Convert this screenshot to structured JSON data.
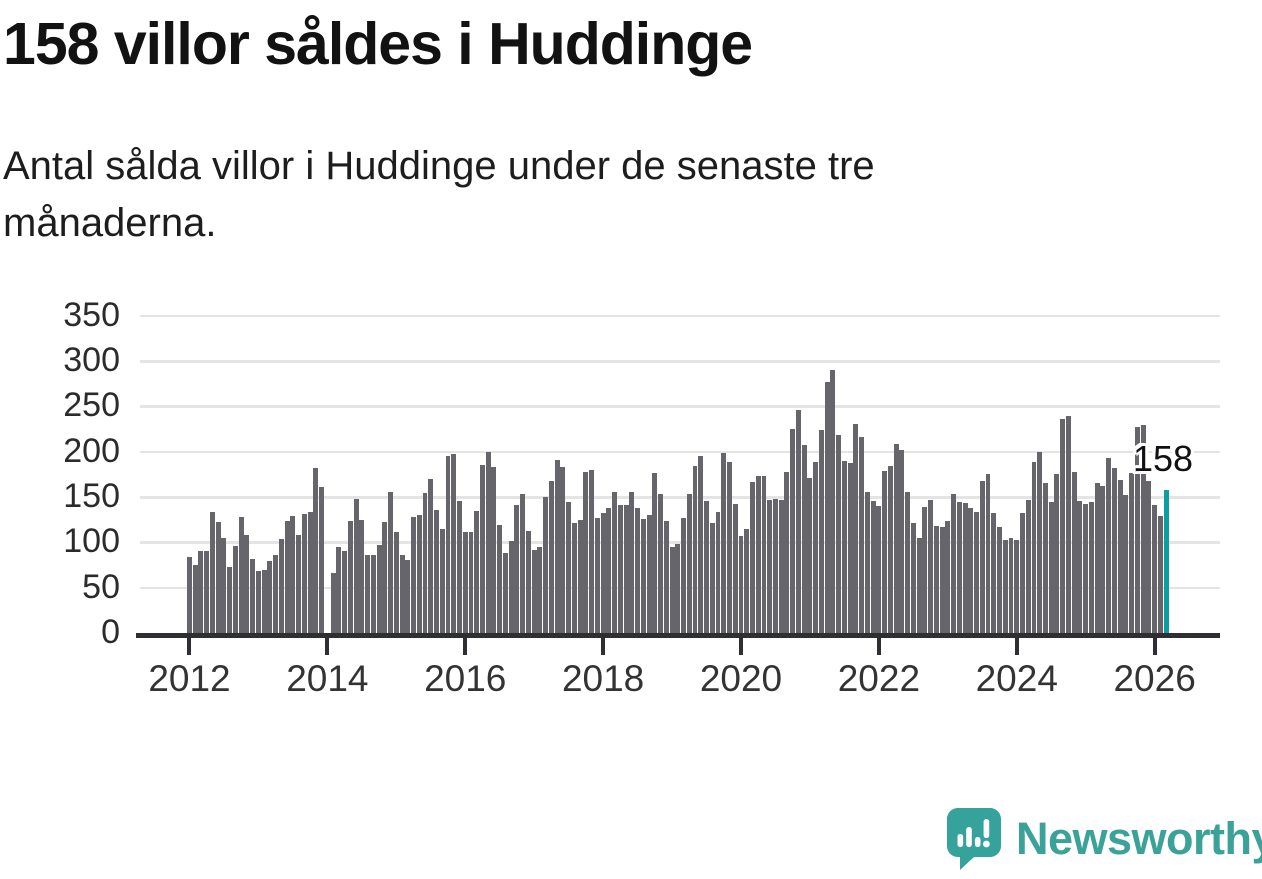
{
  "title": "158 villor såldes i Huddinge",
  "subtitle": "Antal sålda villor i Huddinge under de senaste tre månaderna.",
  "annotation": {
    "label": "158"
  },
  "footer": {
    "brand": "Newsworthy"
  },
  "colors": {
    "bar": "#65656b",
    "highlight": "#0c9fa2",
    "grid": "#e4e4e4",
    "axis": "#2f2f33",
    "brand_text": "#3ba29a",
    "brand_icon": "#35a39b"
  },
  "chart_data": {
    "type": "bar",
    "title": "158 villor såldes i Huddinge",
    "xlabel": "",
    "ylabel": "Antal sålda villor",
    "x_unit": "month",
    "start_month": "2012-01",
    "end_month": "2026-03",
    "ylim": [
      0,
      350
    ],
    "grid": "horizontal",
    "y_ticks": [
      0,
      50,
      100,
      150,
      200,
      250,
      300,
      350
    ],
    "x_tick_labels": [
      "2012",
      "2014",
      "2016",
      "2018",
      "2020",
      "2022",
      "2024",
      "2026"
    ],
    "x_tick_month_index": [
      0,
      24,
      48,
      72,
      96,
      120,
      144,
      168
    ],
    "highlight_last_bar": true,
    "last_value_label": "158",
    "values": [
      84,
      75,
      90,
      90,
      133,
      122,
      105,
      73,
      96,
      128,
      108,
      82,
      68,
      69,
      79,
      86,
      104,
      124,
      129,
      108,
      131,
      133,
      182,
      161,
      0,
      66,
      95,
      90,
      123,
      148,
      125,
      86,
      86,
      97,
      122,
      156,
      111,
      86,
      80,
      128,
      130,
      154,
      170,
      136,
      115,
      195,
      197,
      146,
      111,
      111,
      135,
      185,
      200,
      183,
      119,
      88,
      102,
      141,
      153,
      112,
      92,
      95,
      150,
      168,
      191,
      183,
      144,
      121,
      125,
      178,
      180,
      127,
      132,
      138,
      155,
      141,
      141,
      156,
      138,
      126,
      130,
      176,
      153,
      123,
      95,
      98,
      127,
      153,
      184,
      195,
      146,
      121,
      134,
      198,
      189,
      142,
      107,
      115,
      167,
      173,
      173,
      147,
      148,
      147,
      178,
      225,
      246,
      207,
      171,
      189,
      224,
      277,
      290,
      218,
      190,
      187,
      231,
      216,
      155,
      146,
      140,
      179,
      184,
      209,
      202,
      155,
      121,
      105,
      139,
      147,
      118,
      117,
      123,
      153,
      145,
      143,
      138,
      134,
      168,
      175,
      132,
      117,
      103,
      105,
      103,
      132,
      147,
      189,
      200,
      166,
      145,
      175,
      236,
      239,
      178,
      146,
      142,
      144,
      165,
      162,
      193,
      182,
      169,
      152,
      177,
      227,
      229,
      168,
      141,
      129,
      158
    ]
  }
}
